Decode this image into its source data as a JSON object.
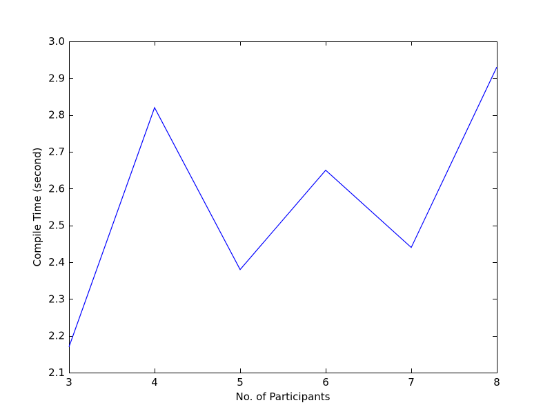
{
  "chart_data": {
    "type": "line",
    "title": "",
    "xlabel": "No. of Participants",
    "ylabel": "Compile Time (second)",
    "x": [
      3,
      4,
      5,
      6,
      7,
      8
    ],
    "series": [
      {
        "name": "Compile Time",
        "color": "#0000ff",
        "values": [
          2.17,
          2.82,
          2.38,
          2.65,
          2.44,
          2.93
        ]
      }
    ],
    "xlim": [
      3,
      8
    ],
    "ylim": [
      2.1,
      3.0
    ],
    "xticks": [
      3,
      4,
      5,
      6,
      7,
      8
    ],
    "yticks": [
      2.1,
      2.2,
      2.3,
      2.4,
      2.5,
      2.6,
      2.7,
      2.8,
      2.9,
      3.0
    ],
    "xtick_labels": [
      "3",
      "4",
      "5",
      "6",
      "7",
      "8"
    ],
    "ytick_labels": [
      "2.1",
      "2.2",
      "2.3",
      "2.4",
      "2.5",
      "2.6",
      "2.7",
      "2.8",
      "2.9",
      "3.0"
    ],
    "grid": false,
    "legend": "none"
  }
}
